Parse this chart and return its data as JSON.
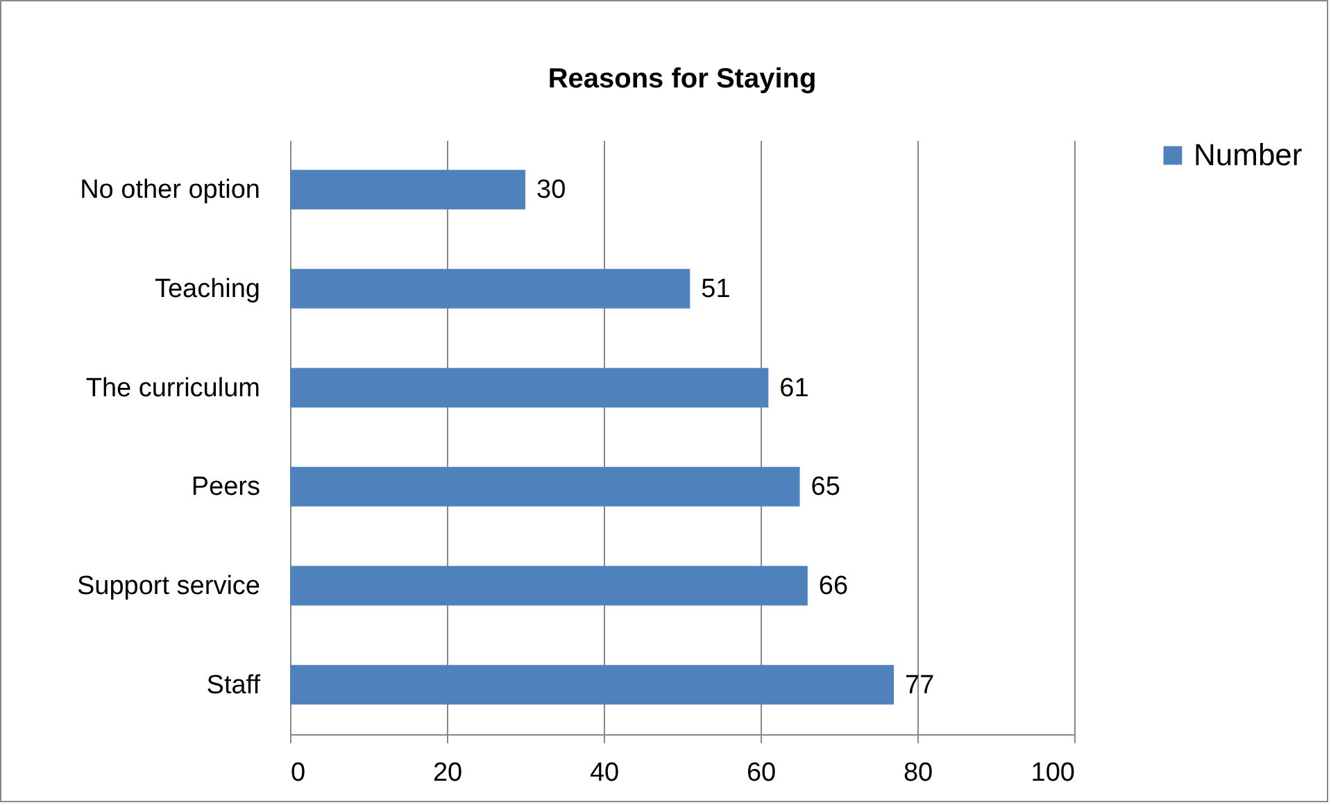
{
  "chart_data": {
    "type": "bar",
    "title": "Reasons for Staying",
    "orientation": "horizontal",
    "categories": [
      "No other option",
      "Teaching",
      "The curriculum",
      "Peers",
      "Support service",
      "Staff"
    ],
    "series": [
      {
        "name": "Number",
        "color": "#4f81bd",
        "values": [
          30,
          51,
          61,
          65,
          66,
          77
        ]
      }
    ],
    "xlim": [
      0,
      100
    ],
    "xticks": [
      0,
      20,
      40,
      60,
      80,
      100
    ],
    "grid": "x",
    "legend": "right",
    "data_labels": true
  }
}
